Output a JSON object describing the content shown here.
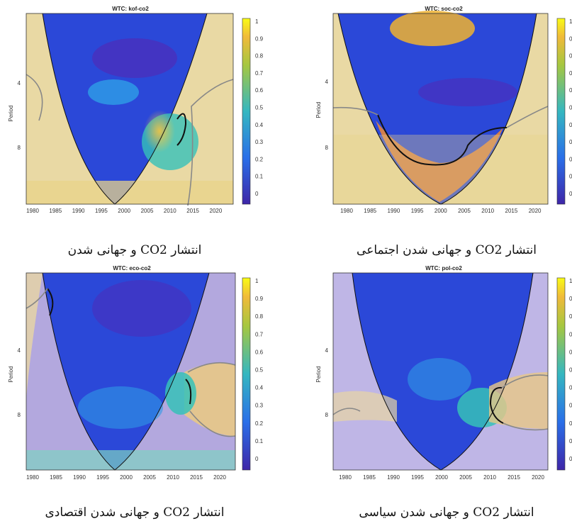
{
  "chart_data": [
    {
      "type": "heatmap",
      "title": "WTC: kof-co2",
      "ylabel": "Period",
      "x_ticks": [
        "1980",
        "1985",
        "1990",
        "1995",
        "2000",
        "2005",
        "2010",
        "2015",
        "2020"
      ],
      "y_ticks": [
        "4",
        "8"
      ],
      "colorbar_ticks": [
        "1",
        "0.9",
        "0.8",
        "0.7",
        "0.6",
        "0.5",
        "0.4",
        "0.3",
        "0.2",
        "0.1",
        "0"
      ],
      "xlim": [
        1978,
        2022
      ],
      "colorbar_range": [
        0,
        1
      ],
      "caption": "انتشار CO2 و جهانی شدن"
    },
    {
      "type": "heatmap",
      "title": "WTC: soc-co2",
      "ylabel": "Period",
      "x_ticks": [
        "1980",
        "1985",
        "1990",
        "1995",
        "2000",
        "2005",
        "2010",
        "2015",
        "2020"
      ],
      "y_ticks": [
        "4",
        "8"
      ],
      "colorbar_ticks": [
        "1",
        "0",
        "0",
        "0",
        "0",
        "0",
        "0",
        "0",
        "0",
        "0",
        "0"
      ],
      "xlim": [
        1978,
        2022
      ],
      "colorbar_range": [
        0,
        1
      ],
      "caption": "انتشار CO2 و جهانی شدن اجتماعی"
    },
    {
      "type": "heatmap",
      "title": "WTC: eco-co2",
      "ylabel": "Period",
      "x_ticks": [
        "1980",
        "1985",
        "1990",
        "1995",
        "2000",
        "2005",
        "2010",
        "2015",
        "2020"
      ],
      "y_ticks": [
        "4",
        "8"
      ],
      "colorbar_ticks": [
        "1",
        "0.9",
        "0.8",
        "0.7",
        "0.6",
        "0.5",
        "0.4",
        "0.3",
        "0.2",
        "0.1",
        "0"
      ],
      "xlim": [
        1978,
        2022
      ],
      "colorbar_range": [
        0,
        1
      ],
      "caption": "انتشار CO2 و جهانی شدن اقتصادی"
    },
    {
      "type": "heatmap",
      "title": "WTC: pol-co2",
      "ylabel": "Period",
      "x_ticks": [
        "1980",
        "1985",
        "1990",
        "1995",
        "2000",
        "2005",
        "2010",
        "2015",
        "2020"
      ],
      "y_ticks": [
        "4",
        "8"
      ],
      "colorbar_ticks": [
        "1",
        "0",
        "0",
        "0",
        "0",
        "0",
        "0",
        "0",
        "0",
        "0",
        "0"
      ],
      "xlim": [
        1978,
        2022
      ],
      "colorbar_range": [
        0,
        1
      ],
      "caption": "انتشار CO2 و جهانی شدن سیاسی"
    }
  ],
  "colors": {
    "low": "#3e26a8",
    "mid": "#35b7c0",
    "high": "#f9fb15",
    "shade": "#ffffff"
  }
}
